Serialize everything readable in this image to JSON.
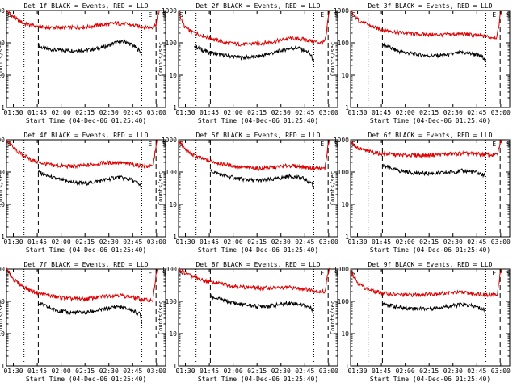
{
  "figure": {
    "xlabel": "Start Time (04-Dec-06 01:25:40)",
    "ylabel": "Counts/sec",
    "x_tick_labels": [
      "01:30",
      "01:45",
      "02:00",
      "02:15",
      "02:30",
      "02:45",
      "03:00"
    ],
    "y_tick_labels": [
      "1",
      "10",
      "100",
      "1000"
    ],
    "marker_labels": [
      "S",
      "E",
      "S"
    ],
    "colors": {
      "events": "#000000",
      "lld": "#dd0000",
      "axes": "#000000",
      "background": "#ffffff"
    }
  },
  "chart_data": [
    {
      "type": "line",
      "title": "Det 1f BLACK = Events, RED = LLD",
      "xlabel": "Start Time (04-Dec-06 01:25:40)",
      "ylabel": "Counts/sec",
      "x_unit": "minutes after 01:25:40",
      "xlim": [
        0,
        100
      ],
      "ylim": [
        1,
        1000
      ],
      "yscale": "log",
      "markers": {
        "dotted": [
          11,
          85
        ],
        "dashed": [
          20,
          94
        ]
      },
      "series": [
        {
          "name": "Events",
          "color": "#000000",
          "x": [
            20,
            25,
            30,
            40,
            50,
            60,
            68,
            75,
            80,
            84,
            85
          ],
          "y": [
            80,
            65,
            60,
            58,
            60,
            70,
            100,
            110,
            80,
            55,
            40
          ]
        },
        {
          "name": "LLD",
          "color": "#dd0000",
          "x": [
            0,
            2,
            5,
            8,
            12,
            18,
            25,
            35,
            50,
            60,
            68,
            75,
            82,
            88,
            92,
            94,
            95,
            96
          ],
          "y": [
            1000,
            800,
            600,
            480,
            380,
            330,
            300,
            290,
            310,
            360,
            400,
            380,
            330,
            310,
            300,
            380,
            700,
            1000
          ]
        }
      ]
    },
    {
      "type": "line",
      "title": "Det 2f BLACK = Events, RED = LLD",
      "xlabel": "Start Time (04-Dec-06 01:25:40)",
      "ylabel": "Counts/sec",
      "x_unit": "minutes after 01:25:40",
      "xlim": [
        0,
        100
      ],
      "ylim": [
        1,
        1000
      ],
      "yscale": "log",
      "markers": {
        "dotted": [
          11,
          85
        ],
        "dashed": [
          20,
          94
        ]
      },
      "series": [
        {
          "name": "Events",
          "color": "#000000",
          "x": [
            10,
            15,
            20,
            30,
            40,
            50,
            60,
            68,
            75,
            82,
            84,
            85
          ],
          "y": [
            80,
            60,
            50,
            40,
            35,
            38,
            50,
            65,
            70,
            50,
            35,
            25
          ]
        },
        {
          "name": "LLD",
          "color": "#dd0000",
          "x": [
            0,
            2,
            4,
            8,
            15,
            20,
            30,
            40,
            50,
            60,
            70,
            78,
            85,
            90,
            92,
            93,
            94,
            95
          ],
          "y": [
            1000,
            500,
            300,
            220,
            170,
            140,
            100,
            90,
            95,
            110,
            140,
            130,
            110,
            100,
            110,
            200,
            600,
            1000
          ]
        }
      ]
    },
    {
      "type": "line",
      "title": "Det 3f BLACK = Events, RED = LLD",
      "xlabel": "Start Time (04-Dec-06 01:25:40)",
      "ylabel": "Counts/sec",
      "x_unit": "minutes after 01:25:40",
      "xlim": [
        0,
        100
      ],
      "ylim": [
        1,
        1000
      ],
      "yscale": "log",
      "markers": {
        "dotted": [
          11,
          85
        ],
        "dashed": [
          20,
          94
        ]
      },
      "series": [
        {
          "name": "Events",
          "color": "#000000",
          "x": [
            20,
            25,
            30,
            40,
            50,
            60,
            70,
            78,
            84,
            85
          ],
          "y": [
            90,
            70,
            55,
            45,
            40,
            42,
            50,
            45,
            35,
            25
          ]
        },
        {
          "name": "LLD",
          "color": "#dd0000",
          "x": [
            0,
            2,
            5,
            10,
            15,
            20,
            30,
            40,
            50,
            60,
            70,
            80,
            88,
            92,
            93,
            94,
            95
          ],
          "y": [
            1000,
            700,
            500,
            380,
            300,
            260,
            210,
            190,
            180,
            180,
            190,
            170,
            150,
            150,
            300,
            700,
            1000
          ]
        }
      ]
    },
    {
      "type": "line",
      "title": "Det 4f BLACK = Events, RED = LLD",
      "xlabel": "Start Time (04-Dec-06 01:25:40)",
      "ylabel": "Counts/sec",
      "x_unit": "minutes after 01:25:40",
      "xlim": [
        0,
        100
      ],
      "ylim": [
        1,
        1000
      ],
      "yscale": "log",
      "markers": {
        "dotted": [
          11,
          85
        ],
        "dashed": [
          20,
          94
        ]
      },
      "series": [
        {
          "name": "Events",
          "color": "#000000",
          "x": [
            20,
            25,
            30,
            40,
            50,
            60,
            70,
            78,
            84,
            85
          ],
          "y": [
            100,
            80,
            65,
            50,
            45,
            55,
            70,
            60,
            40,
            25
          ]
        },
        {
          "name": "LLD",
          "color": "#dd0000",
          "x": [
            0,
            2,
            5,
            10,
            15,
            20,
            30,
            40,
            50,
            60,
            70,
            80,
            88,
            92,
            93,
            94,
            95
          ],
          "y": [
            1000,
            800,
            500,
            350,
            250,
            200,
            160,
            150,
            160,
            190,
            200,
            170,
            150,
            150,
            300,
            700,
            1000
          ]
        }
      ]
    },
    {
      "type": "line",
      "title": "Det 5f BLACK = Events, RED = LLD",
      "xlabel": "Start Time (04-Dec-06 01:25:40)",
      "ylabel": "Counts/sec",
      "x_unit": "minutes after 01:25:40",
      "xlim": [
        0,
        100
      ],
      "ylim": [
        1,
        1000
      ],
      "yscale": "log",
      "markers": {
        "dotted": [
          11,
          85
        ],
        "dashed": [
          20,
          94
        ]
      },
      "series": [
        {
          "name": "Events",
          "color": "#000000",
          "x": [
            20,
            25,
            30,
            40,
            50,
            60,
            70,
            78,
            84,
            85
          ],
          "y": [
            110,
            90,
            75,
            60,
            55,
            60,
            75,
            65,
            45,
            30
          ]
        },
        {
          "name": "LLD",
          "color": "#dd0000",
          "x": [
            0,
            2,
            5,
            10,
            15,
            20,
            30,
            40,
            50,
            60,
            70,
            80,
            88,
            92,
            93,
            94,
            95
          ],
          "y": [
            1000,
            700,
            450,
            320,
            260,
            220,
            170,
            140,
            130,
            140,
            160,
            140,
            130,
            130,
            300,
            700,
            1000
          ]
        }
      ]
    },
    {
      "type": "line",
      "title": "Det 6f BLACK = Events, RED = LLD",
      "xlabel": "Start Time (04-Dec-06 01:25:40)",
      "ylabel": "Counts/sec",
      "x_unit": "minutes after 01:25:40",
      "xlim": [
        0,
        100
      ],
      "ylim": [
        1,
        1000
      ],
      "yscale": "log",
      "markers": {
        "dotted": [
          11,
          85
        ],
        "dashed": [
          20,
          94
        ]
      },
      "series": [
        {
          "name": "Events",
          "color": "#000000",
          "x": [
            20,
            25,
            30,
            40,
            50,
            60,
            70,
            78,
            84,
            85
          ],
          "y": [
            160,
            130,
            110,
            95,
            90,
            95,
            110,
            100,
            80,
            60
          ]
        },
        {
          "name": "LLD",
          "color": "#dd0000",
          "x": [
            0,
            2,
            5,
            10,
            15,
            20,
            30,
            40,
            50,
            60,
            70,
            80,
            88,
            92,
            93,
            94,
            95
          ],
          "y": [
            1000,
            700,
            550,
            450,
            400,
            370,
            340,
            330,
            340,
            360,
            380,
            360,
            340,
            340,
            450,
            800,
            1000
          ]
        }
      ]
    },
    {
      "type": "line",
      "title": "Det 7f BLACK = Events, RED = LLD",
      "xlabel": "Start Time (04-Dec-06 01:25:40)",
      "ylabel": "Counts/sec",
      "x_unit": "minutes after 01:25:40",
      "xlim": [
        0,
        100
      ],
      "ylim": [
        1,
        1000
      ],
      "yscale": "log",
      "markers": {
        "dotted": [
          11,
          85
        ],
        "dashed": [
          20,
          94
        ]
      },
      "series": [
        {
          "name": "Events",
          "color": "#000000",
          "x": [
            20,
            25,
            30,
            40,
            50,
            60,
            70,
            78,
            84,
            85
          ],
          "y": [
            90,
            70,
            55,
            45,
            45,
            55,
            70,
            55,
            40,
            20
          ]
        },
        {
          "name": "LLD",
          "color": "#dd0000",
          "x": [
            0,
            2,
            5,
            10,
            15,
            20,
            30,
            40,
            50,
            60,
            70,
            80,
            88,
            92,
            93,
            94,
            95
          ],
          "y": [
            1000,
            700,
            450,
            300,
            220,
            180,
            140,
            120,
            120,
            140,
            160,
            130,
            110,
            110,
            250,
            700,
            1000
          ]
        }
      ]
    },
    {
      "type": "line",
      "title": "Det 8f BLACK = Events, RED = LLD",
      "xlabel": "Start Time (04-Dec-06 01:25:40)",
      "ylabel": "Counts/sec",
      "x_unit": "minutes after 01:25:40",
      "xlim": [
        0,
        100
      ],
      "ylim": [
        1,
        1000
      ],
      "yscale": "log",
      "markers": {
        "dotted": [
          11,
          85
        ],
        "dashed": [
          20,
          94
        ]
      },
      "series": [
        {
          "name": "Events",
          "color": "#000000",
          "x": [
            20,
            25,
            30,
            40,
            50,
            60,
            70,
            78,
            84,
            85
          ],
          "y": [
            140,
            120,
            100,
            80,
            70,
            75,
            90,
            80,
            60,
            40
          ]
        },
        {
          "name": "LLD",
          "color": "#dd0000",
          "x": [
            0,
            2,
            5,
            10,
            15,
            20,
            30,
            40,
            50,
            60,
            70,
            80,
            88,
            92,
            93,
            94,
            95
          ],
          "y": [
            1000,
            900,
            700,
            550,
            450,
            400,
            330,
            280,
            260,
            260,
            270,
            240,
            200,
            200,
            400,
            800,
            1000
          ]
        }
      ]
    },
    {
      "type": "line",
      "title": "Det 9f BLACK = Events, RED = LLD",
      "xlabel": "Start Time (04-Dec-06 01:25:40)",
      "ylabel": "Counts/sec",
      "x_unit": "minutes after 01:25:40",
      "xlim": [
        0,
        100
      ],
      "ylim": [
        1,
        1000
      ],
      "yscale": "log",
      "markers": {
        "dotted": [
          11,
          85
        ],
        "dashed": [
          20,
          94
        ]
      },
      "series": [
        {
          "name": "Events",
          "color": "#000000",
          "x": [
            20,
            25,
            30,
            40,
            50,
            60,
            70,
            78,
            84,
            85
          ],
          "y": [
            90,
            75,
            65,
            60,
            60,
            70,
            80,
            70,
            55,
            40
          ]
        },
        {
          "name": "LLD",
          "color": "#dd0000",
          "x": [
            0,
            2,
            5,
            10,
            15,
            20,
            30,
            40,
            50,
            60,
            70,
            80,
            88,
            92,
            93,
            94,
            95
          ],
          "y": [
            1000,
            600,
            350,
            250,
            200,
            180,
            160,
            160,
            170,
            180,
            190,
            170,
            160,
            160,
            300,
            700,
            1000
          ]
        }
      ]
    }
  ]
}
